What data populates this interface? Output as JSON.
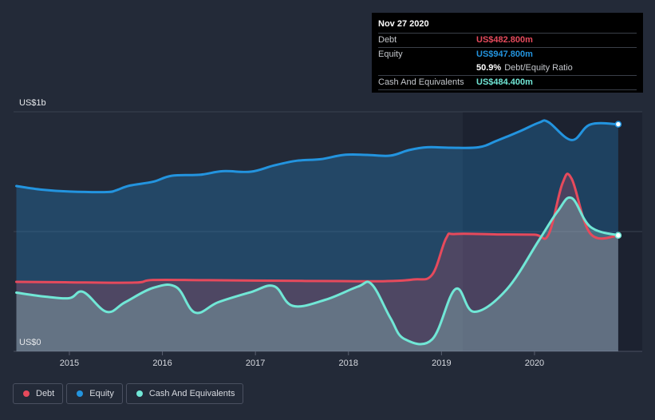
{
  "chart_data": {
    "type": "area",
    "y_axis_labels": {
      "top": "US$1b",
      "bottom": "US$0"
    },
    "ylim": [
      0,
      1000
    ],
    "xlim": [
      2014.4,
      2020.9
    ],
    "x_ticks": [
      {
        "value": 2015,
        "label": "2015"
      },
      {
        "value": 2016,
        "label": "2016"
      },
      {
        "value": 2017,
        "label": "2017"
      },
      {
        "value": 2018,
        "label": "2018"
      },
      {
        "value": 2019,
        "label": "2019"
      },
      {
        "value": 2020,
        "label": "2020"
      }
    ],
    "series": [
      {
        "name": "Equity",
        "color": "#2394df",
        "points": [
          [
            2014.43,
            690
          ],
          [
            2014.7,
            675
          ],
          [
            2015.0,
            667
          ],
          [
            2015.4,
            665
          ],
          [
            2015.5,
            672
          ],
          [
            2015.65,
            692
          ],
          [
            2015.9,
            708
          ],
          [
            2016.1,
            733
          ],
          [
            2016.4,
            737
          ],
          [
            2016.65,
            752
          ],
          [
            2016.95,
            750
          ],
          [
            2017.2,
            776
          ],
          [
            2017.45,
            796
          ],
          [
            2017.7,
            802
          ],
          [
            2017.95,
            820
          ],
          [
            2018.2,
            820
          ],
          [
            2018.45,
            817
          ],
          [
            2018.65,
            840
          ],
          [
            2018.85,
            852
          ],
          [
            2019.1,
            850
          ],
          [
            2019.4,
            852
          ],
          [
            2019.6,
            880
          ],
          [
            2019.85,
            920
          ],
          [
            2020.05,
            955
          ],
          [
            2020.15,
            957
          ],
          [
            2020.4,
            882
          ],
          [
            2020.6,
            947
          ],
          [
            2020.9,
            948
          ]
        ]
      },
      {
        "name": "Debt",
        "color": "#e64a5c",
        "points": [
          [
            2014.43,
            290
          ],
          [
            2015.0,
            288
          ],
          [
            2015.7,
            287
          ],
          [
            2015.9,
            298
          ],
          [
            2016.5,
            297
          ],
          [
            2017.5,
            294
          ],
          [
            2018.0,
            293
          ],
          [
            2018.4,
            293
          ],
          [
            2018.7,
            300
          ],
          [
            2018.9,
            320
          ],
          [
            2019.05,
            472
          ],
          [
            2019.15,
            490
          ],
          [
            2019.6,
            488
          ],
          [
            2020.0,
            487
          ],
          [
            2020.15,
            487
          ],
          [
            2020.3,
            700
          ],
          [
            2020.4,
            720
          ],
          [
            2020.6,
            492
          ],
          [
            2020.9,
            483
          ]
        ]
      },
      {
        "name": "Cash And Equivalents",
        "color": "#71e7d6",
        "points": [
          [
            2014.43,
            245
          ],
          [
            2014.75,
            228
          ],
          [
            2015.0,
            222
          ],
          [
            2015.15,
            248
          ],
          [
            2015.4,
            165
          ],
          [
            2015.6,
            205
          ],
          [
            2015.9,
            265
          ],
          [
            2016.15,
            268
          ],
          [
            2016.35,
            162
          ],
          [
            2016.6,
            205
          ],
          [
            2016.95,
            247
          ],
          [
            2017.2,
            272
          ],
          [
            2017.4,
            190
          ],
          [
            2017.75,
            215
          ],
          [
            2018.1,
            270
          ],
          [
            2018.25,
            280
          ],
          [
            2018.45,
            140
          ],
          [
            2018.6,
            52
          ],
          [
            2018.9,
            50
          ],
          [
            2019.15,
            260
          ],
          [
            2019.35,
            165
          ],
          [
            2019.7,
            258
          ],
          [
            2020.05,
            465
          ],
          [
            2020.25,
            585
          ],
          [
            2020.4,
            640
          ],
          [
            2020.6,
            520
          ],
          [
            2020.9,
            484
          ]
        ]
      }
    ],
    "legend": [
      "Debt",
      "Equity",
      "Cash And Equivalents"
    ],
    "legend_placement": "bottom-left",
    "grid": true
  },
  "tooltip": {
    "date": "Nov 27 2020",
    "rows": [
      {
        "label": "Debt",
        "value": "US$482.800m",
        "color": "#e64a5c"
      },
      {
        "label": "Equity",
        "value": "US$947.800m",
        "color": "#2394df"
      }
    ],
    "ratio_pct": "50.9%",
    "ratio_label": "Debt/Equity Ratio",
    "cash_label": "Cash And Equivalents",
    "cash_value": "US$484.400m",
    "cash_color": "#71e7d6"
  },
  "legend_items": [
    {
      "label": "Debt",
      "color": "#e64a5c"
    },
    {
      "label": "Equity",
      "color": "#2394df"
    },
    {
      "label": "Cash And Equivalents",
      "color": "#71e7d6"
    }
  ]
}
